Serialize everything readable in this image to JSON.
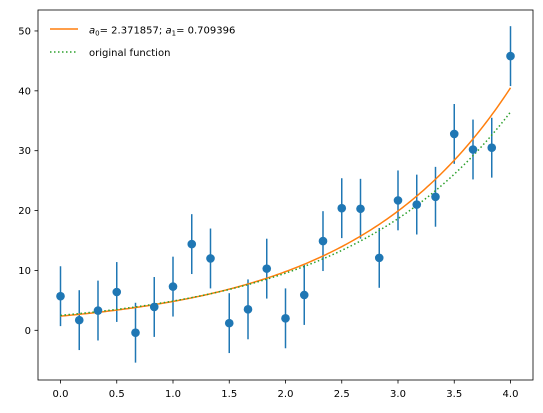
{
  "chart_data": {
    "type": "scatter",
    "title": "",
    "xlabel": "",
    "ylabel": "",
    "xlim": [
      -0.2,
      4.2
    ],
    "ylim": [
      -8.3,
      53.5
    ],
    "xticks": [
      0.0,
      0.5,
      1.0,
      1.5,
      2.0,
      2.5,
      3.0,
      3.5,
      4.0
    ],
    "yticks": [
      0,
      10,
      20,
      30,
      40,
      50
    ],
    "xtick_labels": [
      "0.0",
      "0.5",
      "1.0",
      "1.5",
      "2.0",
      "2.5",
      "3.0",
      "3.5",
      "4.0"
    ],
    "ytick_labels": [
      "0",
      "10",
      "20",
      "30",
      "40",
      "50"
    ],
    "grid": false,
    "legend_position": "top-left",
    "legend": [
      {
        "label_math": true,
        "label_a0_name": "a",
        "label_a0_sub": "0",
        "label_a0_value": "2.371857",
        "label_a1_name": "a",
        "label_a1_sub": "1",
        "label_a1_value": "0.709396",
        "color": "#ff7f0e",
        "style": "solid"
      },
      {
        "label": "original function",
        "color": "#2ca02c",
        "style": "dotted"
      }
    ],
    "series": [
      {
        "kind": "errorbar",
        "color": "#1f77b4",
        "yerr": 5,
        "x": [
          0.0,
          0.1667,
          0.3333,
          0.5,
          0.6667,
          0.8333,
          1.0,
          1.1667,
          1.3333,
          1.5,
          1.6667,
          1.8333,
          2.0,
          2.1667,
          2.3333,
          2.5,
          2.6667,
          2.8333,
          3.0,
          3.1667,
          3.3333,
          3.5,
          3.6667,
          3.8333,
          4.0
        ],
        "y": [
          5.7,
          1.7,
          3.3,
          6.4,
          -0.4,
          3.9,
          7.3,
          14.4,
          12.0,
          1.2,
          3.5,
          10.3,
          2.0,
          5.9,
          14.9,
          20.4,
          20.3,
          12.1,
          21.7,
          21.0,
          22.3,
          32.8,
          30.2,
          30.5,
          45.8
        ]
      },
      {
        "kind": "line",
        "color": "#ff7f0e",
        "style": "solid",
        "function": "a0*exp(a1*x)",
        "a0": 2.371857,
        "a1": 0.709396,
        "x_range": [
          0,
          4
        ]
      },
      {
        "kind": "line",
        "color": "#2ca02c",
        "style": "dotted",
        "function": "2.5*exp(0.67*x)",
        "a0": 2.5,
        "a1": 0.67,
        "x_range": [
          0,
          4
        ]
      }
    ]
  }
}
